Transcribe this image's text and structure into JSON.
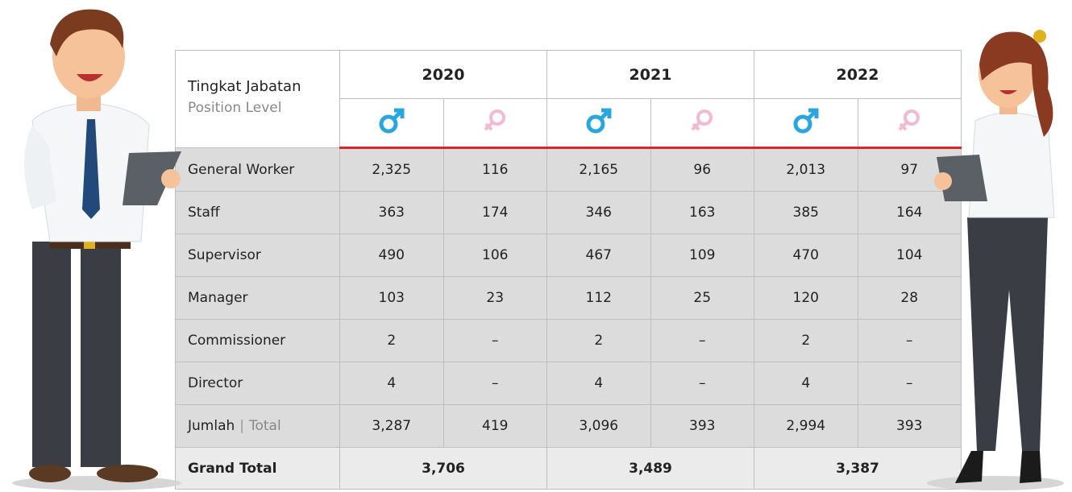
{
  "header": {
    "position_title": "Tingkat Jabatan",
    "position_subtitle": "Position Level",
    "years": [
      "2020",
      "2021",
      "2022"
    ]
  },
  "rows": [
    {
      "label": "General Worker",
      "values": [
        "2,325",
        "116",
        "2,165",
        "96",
        "2,013",
        "97"
      ]
    },
    {
      "label": "Staff",
      "values": [
        "363",
        "174",
        "346",
        "163",
        "385",
        "164"
      ]
    },
    {
      "label": "Supervisor",
      "values": [
        "490",
        "106",
        "467",
        "109",
        "470",
        "104"
      ]
    },
    {
      "label": "Manager",
      "values": [
        "103",
        "23",
        "112",
        "25",
        "120",
        "28"
      ]
    },
    {
      "label": "Commissioner",
      "values": [
        "2",
        "–",
        "2",
        "–",
        "2",
        "–"
      ]
    },
    {
      "label": "Director",
      "values": [
        "4",
        "–",
        "4",
        "–",
        "4",
        "–"
      ]
    }
  ],
  "total_row": {
    "label": "Jumlah",
    "separator": "|",
    "label_en": "Total",
    "values": [
      "3,287",
      "419",
      "3,096",
      "393",
      "2,994",
      "393"
    ]
  },
  "grand_total": {
    "label": "Grand Total",
    "values": [
      "3,706",
      "3,489",
      "3,387"
    ]
  }
}
